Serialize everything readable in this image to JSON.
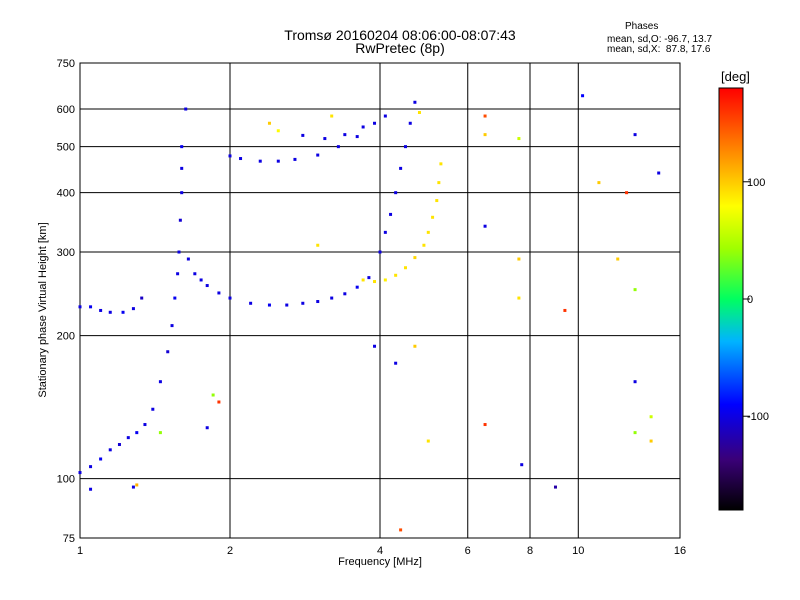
{
  "chart_data": {
    "type": "scatter",
    "title": "Tromsø 20160204 08:06:00-08:07:43",
    "subtitle": "RwPretec (8p)",
    "xlabel": "Frequency [MHz]",
    "ylabel": "Stationary phase Virtual Height [km]",
    "x_scale": "log",
    "y_scale": "log",
    "xlim": [
      1,
      16
    ],
    "ylim": [
      75,
      750
    ],
    "x_ticks": [
      1,
      2,
      4,
      6,
      8,
      10,
      16
    ],
    "y_ticks": [
      75,
      100,
      200,
      300,
      400,
      500,
      600,
      750
    ],
    "grid": true,
    "legend": {
      "title": "Phases",
      "o_mode": "mean, sd,O: -96.7, 13.7",
      "x_mode": "mean, sd,X:  87.8, 17.6"
    },
    "colorbar": {
      "label": "[deg]",
      "range": [
        -180,
        180
      ],
      "ticks": [
        "100",
        "0",
        "-100"
      ]
    },
    "series": [
      {
        "name": "O",
        "values": [
          {
            "x": 1.0,
            "y": 230,
            "p": -100
          },
          {
            "x": 1.05,
            "y": 230,
            "p": -95
          },
          {
            "x": 1.1,
            "y": 226,
            "p": -100
          },
          {
            "x": 1.15,
            "y": 224,
            "p": -100
          },
          {
            "x": 1.22,
            "y": 224,
            "p": -95
          },
          {
            "x": 1.28,
            "y": 228,
            "p": -100
          },
          {
            "x": 1.33,
            "y": 240,
            "p": -110
          },
          {
            "x": 1.0,
            "y": 103,
            "p": -100
          },
          {
            "x": 1.05,
            "y": 106,
            "p": -100
          },
          {
            "x": 1.1,
            "y": 110,
            "p": -95
          },
          {
            "x": 1.15,
            "y": 115,
            "p": -100
          },
          {
            "x": 1.2,
            "y": 118,
            "p": -105
          },
          {
            "x": 1.25,
            "y": 122,
            "p": -100
          },
          {
            "x": 1.3,
            "y": 125,
            "p": -95
          },
          {
            "x": 1.35,
            "y": 130,
            "p": -100
          },
          {
            "x": 1.4,
            "y": 140,
            "p": -100
          },
          {
            "x": 1.45,
            "y": 160,
            "p": -100
          },
          {
            "x": 1.5,
            "y": 185,
            "p": -105
          },
          {
            "x": 1.53,
            "y": 210,
            "p": -100
          },
          {
            "x": 1.55,
            "y": 240,
            "p": -95
          },
          {
            "x": 1.57,
            "y": 270,
            "p": -100
          },
          {
            "x": 1.58,
            "y": 300,
            "p": -100
          },
          {
            "x": 1.59,
            "y": 350,
            "p": -105
          },
          {
            "x": 1.6,
            "y": 400,
            "p": -100
          },
          {
            "x": 1.6,
            "y": 450,
            "p": -100
          },
          {
            "x": 1.6,
            "y": 500,
            "p": -95
          },
          {
            "x": 1.63,
            "y": 600,
            "p": -100
          },
          {
            "x": 1.65,
            "y": 290,
            "p": -100
          },
          {
            "x": 1.7,
            "y": 270,
            "p": -100
          },
          {
            "x": 1.75,
            "y": 262,
            "p": -100
          },
          {
            "x": 1.8,
            "y": 255,
            "p": -100
          },
          {
            "x": 1.9,
            "y": 246,
            "p": -100
          },
          {
            "x": 2.0,
            "y": 240,
            "p": -100
          },
          {
            "x": 2.2,
            "y": 234,
            "p": -100
          },
          {
            "x": 2.4,
            "y": 232,
            "p": -95
          },
          {
            "x": 2.6,
            "y": 232,
            "p": -100
          },
          {
            "x": 2.8,
            "y": 234,
            "p": -100
          },
          {
            "x": 3.0,
            "y": 236,
            "p": -100
          },
          {
            "x": 3.2,
            "y": 240,
            "p": -100
          },
          {
            "x": 3.4,
            "y": 245,
            "p": -100
          },
          {
            "x": 3.6,
            "y": 253,
            "p": -95
          },
          {
            "x": 3.8,
            "y": 265,
            "p": -100
          },
          {
            "x": 4.0,
            "y": 300,
            "p": -100
          },
          {
            "x": 4.1,
            "y": 330,
            "p": -100
          },
          {
            "x": 4.2,
            "y": 360,
            "p": -100
          },
          {
            "x": 4.3,
            "y": 400,
            "p": -100
          },
          {
            "x": 4.4,
            "y": 450,
            "p": -100
          },
          {
            "x": 4.5,
            "y": 500,
            "p": -100
          },
          {
            "x": 4.6,
            "y": 560,
            "p": -100
          },
          {
            "x": 4.7,
            "y": 620,
            "p": -100
          },
          {
            "x": 2.0,
            "y": 478,
            "p": -100
          },
          {
            "x": 2.1,
            "y": 472,
            "p": -100
          },
          {
            "x": 2.3,
            "y": 466,
            "p": -100
          },
          {
            "x": 2.5,
            "y": 466,
            "p": -100
          },
          {
            "x": 2.7,
            "y": 470,
            "p": -100
          },
          {
            "x": 3.0,
            "y": 480,
            "p": -100
          },
          {
            "x": 3.3,
            "y": 500,
            "p": -100
          },
          {
            "x": 3.6,
            "y": 525,
            "p": -100
          },
          {
            "x": 3.9,
            "y": 560,
            "p": -100
          },
          {
            "x": 4.1,
            "y": 580,
            "p": -100
          },
          {
            "x": 2.8,
            "y": 528,
            "p": -100
          },
          {
            "x": 3.1,
            "y": 520,
            "p": -100
          },
          {
            "x": 3.4,
            "y": 530,
            "p": -100
          },
          {
            "x": 3.7,
            "y": 550,
            "p": -100
          },
          {
            "x": 9.0,
            "y": 96,
            "p": -120
          },
          {
            "x": 13.0,
            "y": 530,
            "p": -100
          },
          {
            "x": 13.0,
            "y": 160,
            "p": -100
          },
          {
            "x": 14.5,
            "y": 440,
            "p": -100
          },
          {
            "x": 10.2,
            "y": 640,
            "p": -90
          },
          {
            "x": 7.7,
            "y": 107,
            "p": -100
          },
          {
            "x": 6.5,
            "y": 340,
            "p": -100
          },
          {
            "x": 4.3,
            "y": 175,
            "p": -100
          },
          {
            "x": 3.9,
            "y": 190,
            "p": -100
          },
          {
            "x": 1.28,
            "y": 96,
            "p": -100
          },
          {
            "x": 1.05,
            "y": 95,
            "p": -100
          },
          {
            "x": 1.8,
            "y": 128,
            "p": -100
          }
        ]
      },
      {
        "name": "X",
        "values": [
          {
            "x": 3.7,
            "y": 262,
            "p": 90
          },
          {
            "x": 3.9,
            "y": 260,
            "p": 90
          },
          {
            "x": 4.1,
            "y": 262,
            "p": 85
          },
          {
            "x": 4.3,
            "y": 268,
            "p": 90
          },
          {
            "x": 4.5,
            "y": 278,
            "p": 90
          },
          {
            "x": 4.7,
            "y": 292,
            "p": 95
          },
          {
            "x": 4.9,
            "y": 310,
            "p": 90
          },
          {
            "x": 5.0,
            "y": 330,
            "p": 90
          },
          {
            "x": 5.1,
            "y": 355,
            "p": 90
          },
          {
            "x": 5.2,
            "y": 385,
            "p": 90
          },
          {
            "x": 5.25,
            "y": 420,
            "p": 90
          },
          {
            "x": 5.3,
            "y": 460,
            "p": 90
          },
          {
            "x": 2.4,
            "y": 560,
            "p": 100
          },
          {
            "x": 2.5,
            "y": 540,
            "p": 80
          },
          {
            "x": 3.0,
            "y": 310,
            "p": 90
          },
          {
            "x": 3.2,
            "y": 580,
            "p": 90
          },
          {
            "x": 4.8,
            "y": 590,
            "p": 90
          },
          {
            "x": 5.0,
            "y": 120,
            "p": 90
          },
          {
            "x": 6.5,
            "y": 580,
            "p": 150
          },
          {
            "x": 6.5,
            "y": 530,
            "p": 100
          },
          {
            "x": 6.5,
            "y": 130,
            "p": 160
          },
          {
            "x": 7.6,
            "y": 290,
            "p": 100
          },
          {
            "x": 7.6,
            "y": 240,
            "p": 90
          },
          {
            "x": 7.6,
            "y": 520,
            "p": 60
          },
          {
            "x": 9.4,
            "y": 226,
            "p": 160
          },
          {
            "x": 11.0,
            "y": 420,
            "p": 100
          },
          {
            "x": 12.0,
            "y": 290,
            "p": 100
          },
          {
            "x": 12.5,
            "y": 400,
            "p": 160
          },
          {
            "x": 13.0,
            "y": 250,
            "p": 40
          },
          {
            "x": 13.0,
            "y": 125,
            "p": 40
          },
          {
            "x": 14.0,
            "y": 135,
            "p": 60
          },
          {
            "x": 14.0,
            "y": 120,
            "p": 100
          },
          {
            "x": 1.45,
            "y": 125,
            "p": 40
          },
          {
            "x": 1.85,
            "y": 150,
            "p": 40
          },
          {
            "x": 1.9,
            "y": 145,
            "p": 160
          },
          {
            "x": 1.3,
            "y": 97,
            "p": 110
          },
          {
            "x": 4.4,
            "y": 78,
            "p": 150
          },
          {
            "x": 4.7,
            "y": 190,
            "p": 100
          }
        ]
      }
    ]
  }
}
